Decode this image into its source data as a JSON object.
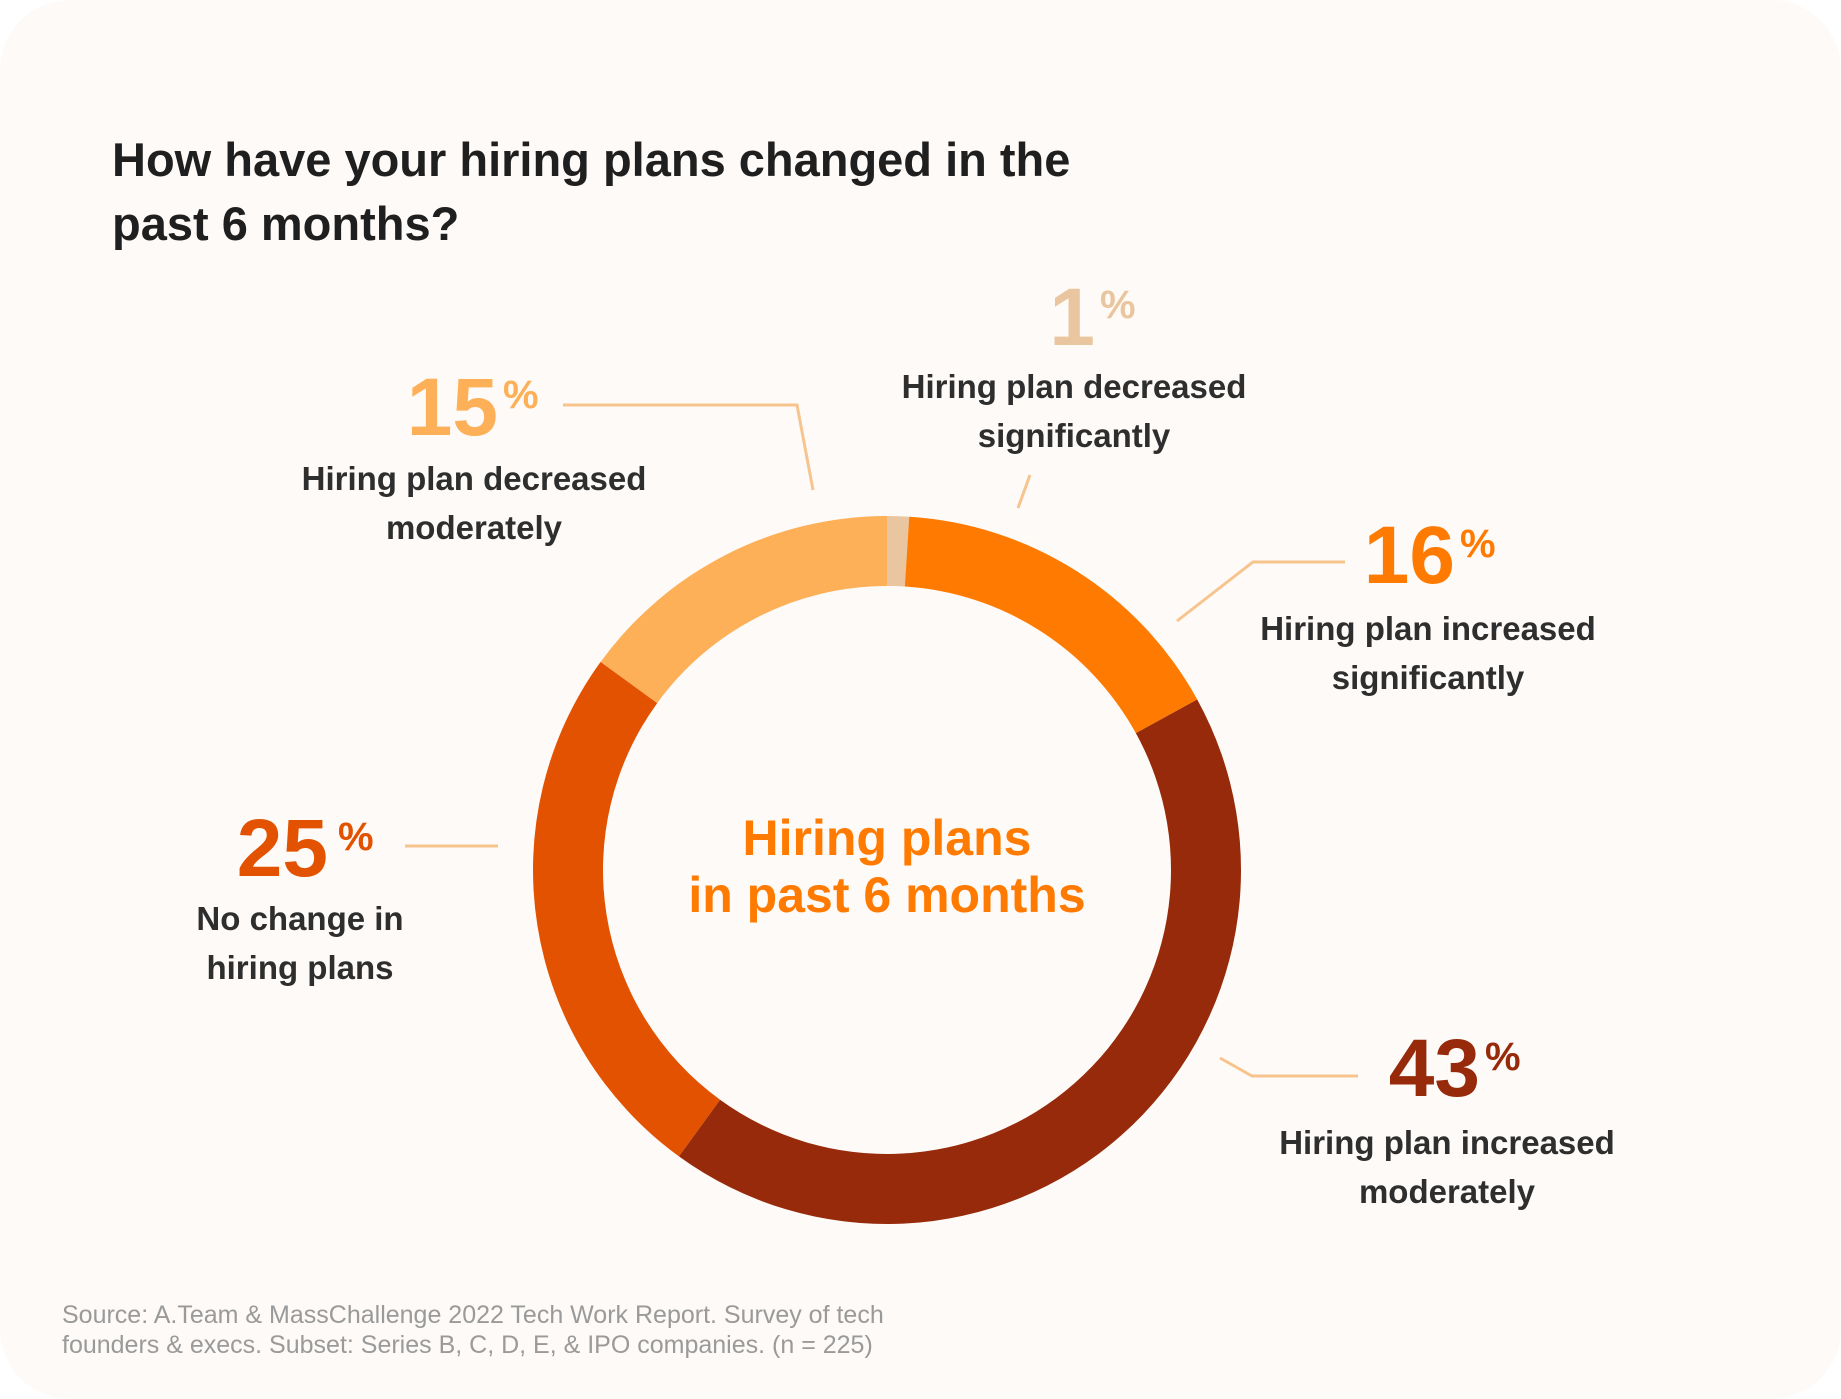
{
  "title_lines": [
    "How have your hiring plans changed in the",
    "past 6 months?"
  ],
  "center_label_lines": [
    "Hiring plans",
    "in past 6 months"
  ],
  "source_lines": [
    "Source: A.Team & MassChallenge 2022 Tech Work Report. Survey of tech",
    "founders & execs. Subset: Series B, C, D, E, & IPO companies. (n = 225)"
  ],
  "colors": {
    "background": "#fdfaf7",
    "title": "#1f1f1f",
    "center_label": "#ff7a00",
    "label_text": "#2e2e2e",
    "source": "#9a9a9a",
    "leader_line": "#f7c48e"
  },
  "chart_data": {
    "type": "pie",
    "donut": true,
    "start_angle_deg": 0,
    "slices": [
      {
        "label_lines": [
          "Hiring plan decreased",
          "significantly"
        ],
        "value": 1,
        "value_text": "1",
        "unit": "%",
        "color": "#eac6a0",
        "value_color": "#eac6a0"
      },
      {
        "label_lines": [
          "Hiring plan increased",
          "significantly"
        ],
        "value": 16,
        "value_text": "16",
        "unit": "%",
        "color": "#ff7a00",
        "value_color": "#ff7a00"
      },
      {
        "label_lines": [
          "Hiring plan increased",
          "moderately"
        ],
        "value": 43,
        "value_text": "43",
        "unit": "%",
        "color": "#962a0a",
        "value_color": "#962a0a"
      },
      {
        "label_lines": [
          "No change in",
          "hiring plans"
        ],
        "value": 25,
        "value_text": "25",
        "unit": "%",
        "color": "#e35200",
        "value_color": "#e35200"
      },
      {
        "label_lines": [
          "Hiring plan decreased",
          "moderately"
        ],
        "value": 15,
        "value_text": "15",
        "unit": "%",
        "color": "#fdb058",
        "value_color": "#fdb058"
      }
    ]
  }
}
